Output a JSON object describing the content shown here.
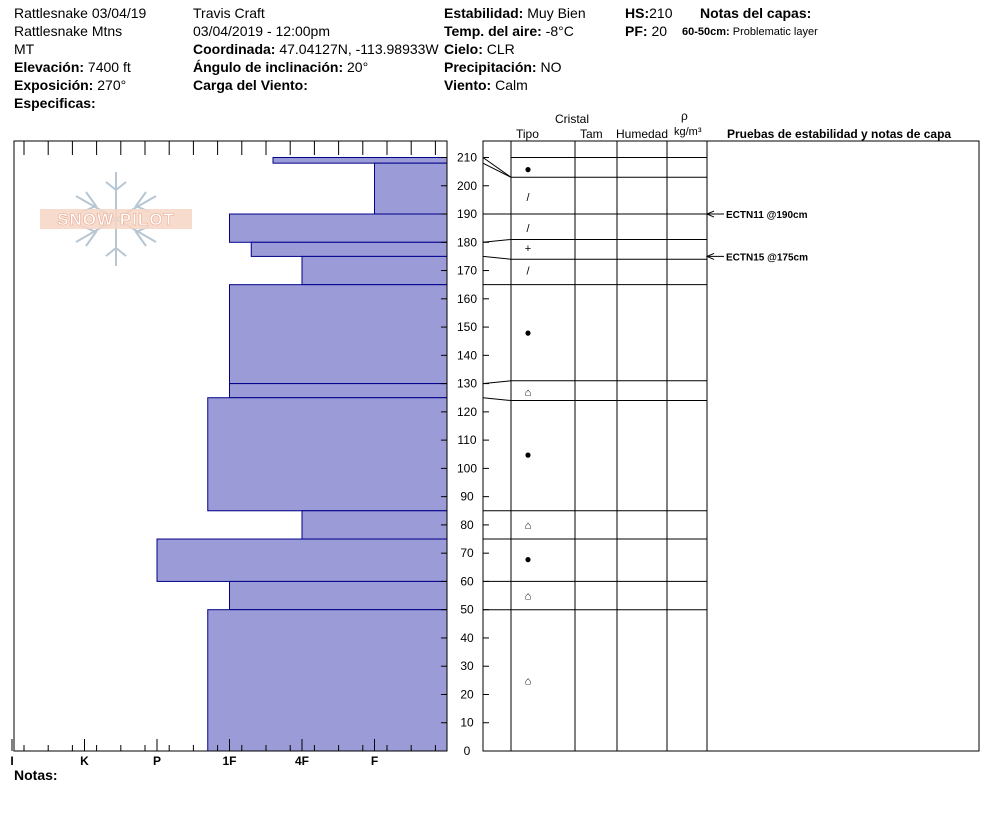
{
  "header": {
    "location_line": "Rattlesnake 03/04/19",
    "range": "Rattlesnake Mtns",
    "state": "MT",
    "elevation_label": "Elevación:",
    "elevation_value": "7400 ft",
    "aspect_label": "Exposición:",
    "aspect_value": "270°",
    "specifics_label": "Especificas:",
    "observer": "Travis  Craft",
    "datetime": "03/04/2019 - 12:00pm",
    "coord_label": "Coordinada:",
    "coord_value": "47.04127N, -113.98933W",
    "slope_label": "Ángulo de inclinación:",
    "slope_value": "20°",
    "wind_load_label": "Carga del Viento:",
    "stability_label": "Estabilidad:",
    "stability_value": "Muy Bien",
    "air_temp_label": "Temp. del aire:",
    "air_temp_value": "-8°C",
    "sky_label": "Cielo:",
    "sky_value": "CLR",
    "precip_label": "Precipitación:",
    "precip_value": "NO",
    "wind_label": "Viento:",
    "wind_value": "Calm",
    "hs_label": "HS:",
    "hs_value": "210",
    "pf_label": "PF:",
    "pf_value": "20",
    "layer_notes_label": "Notas del capas:",
    "layer_note_range": "60-50cm:",
    "layer_note_text": "Problematic layer"
  },
  "logo": {
    "text": "SNOW PILOT"
  },
  "columns": {
    "crystal": "Cristal",
    "type": "Tipo",
    "size": "Tam",
    "moisture": "Humedad",
    "density_symbol": "ρ",
    "density_unit": "kg/m³",
    "tests": "Pruebas de estabilidad y notas de capa"
  },
  "notes_label": "Notas:",
  "colors": {
    "bar_fill": "#9b9bd7",
    "bar_stroke": "#00008b"
  },
  "chart_data": {
    "type": "bar",
    "orientation": "horizontal-profile",
    "ylabel": "",
    "ylim": [
      0,
      210
    ],
    "yticks": [
      0,
      10,
      20,
      30,
      40,
      50,
      60,
      70,
      80,
      90,
      100,
      110,
      120,
      130,
      140,
      150,
      160,
      170,
      180,
      190,
      200,
      210
    ],
    "hardness_scale": [
      "I",
      "K",
      "P",
      "1F",
      "4F",
      "F"
    ],
    "hardness_tick_values": [
      6,
      5,
      4,
      3,
      2,
      1
    ],
    "layers": [
      {
        "top": 210,
        "bottom": 208,
        "hardness": 2.4,
        "symbol": "●"
      },
      {
        "top": 208,
        "bottom": 190,
        "hardness": 1,
        "symbol": "/"
      },
      {
        "top": 190,
        "bottom": 180,
        "hardness": 3,
        "symbol": "/"
      },
      {
        "top": 180,
        "bottom": 175,
        "hardness": 2.7,
        "symbol": "+"
      },
      {
        "top": 175,
        "bottom": 165,
        "hardness": 2,
        "symbol": "/"
      },
      {
        "top": 165,
        "bottom": 130,
        "hardness": 3,
        "symbol": "●"
      },
      {
        "top": 130,
        "bottom": 125,
        "hardness": 3,
        "symbol": "⌂"
      },
      {
        "top": 125,
        "bottom": 85,
        "hardness": 3.3,
        "symbol": "●"
      },
      {
        "top": 85,
        "bottom": 75,
        "hardness": 2,
        "symbol": "⌂"
      },
      {
        "top": 75,
        "bottom": 60,
        "hardness": 4,
        "symbol": "●"
      },
      {
        "top": 60,
        "bottom": 50,
        "hardness": 3,
        "symbol": "⌂"
      },
      {
        "top": 50,
        "bottom": 0,
        "hardness": 3.3,
        "symbol": "⌂"
      }
    ],
    "grid_rows": [
      {
        "top": 210,
        "bottom": 203,
        "symbol": "●",
        "symbol_pos": 206
      },
      {
        "top": 203,
        "bottom": 190,
        "symbol": "/",
        "symbol_pos": 196
      },
      {
        "top": 190,
        "bottom": 181,
        "symbol": "/",
        "symbol_pos": 185
      },
      {
        "top": 181,
        "bottom": 174,
        "symbol": "+",
        "symbol_pos": 178
      },
      {
        "top": 174,
        "bottom": 165,
        "symbol": "/",
        "symbol_pos": 170
      },
      {
        "top": 165,
        "bottom": 131,
        "symbol": "●",
        "symbol_pos": 148
      },
      {
        "top": 131,
        "bottom": 124,
        "symbol": "⌂",
        "symbol_pos": 127
      },
      {
        "top": 124,
        "bottom": 85,
        "symbol": "●",
        "symbol_pos": 105
      },
      {
        "top": 85,
        "bottom": 75,
        "symbol": "⌂",
        "symbol_pos": 80
      },
      {
        "top": 75,
        "bottom": 60,
        "symbol": "●",
        "symbol_pos": 68
      },
      {
        "top": 60,
        "bottom": 50,
        "symbol": "⌂",
        "symbol_pos": 55
      },
      {
        "top": 50,
        "bottom": 0,
        "symbol": "⌂",
        "symbol_pos": 25
      }
    ],
    "tests": [
      {
        "depth": 190,
        "label": "ECTN11 @190cm"
      },
      {
        "depth": 175,
        "label": "ECTN15 @175cm"
      }
    ]
  }
}
